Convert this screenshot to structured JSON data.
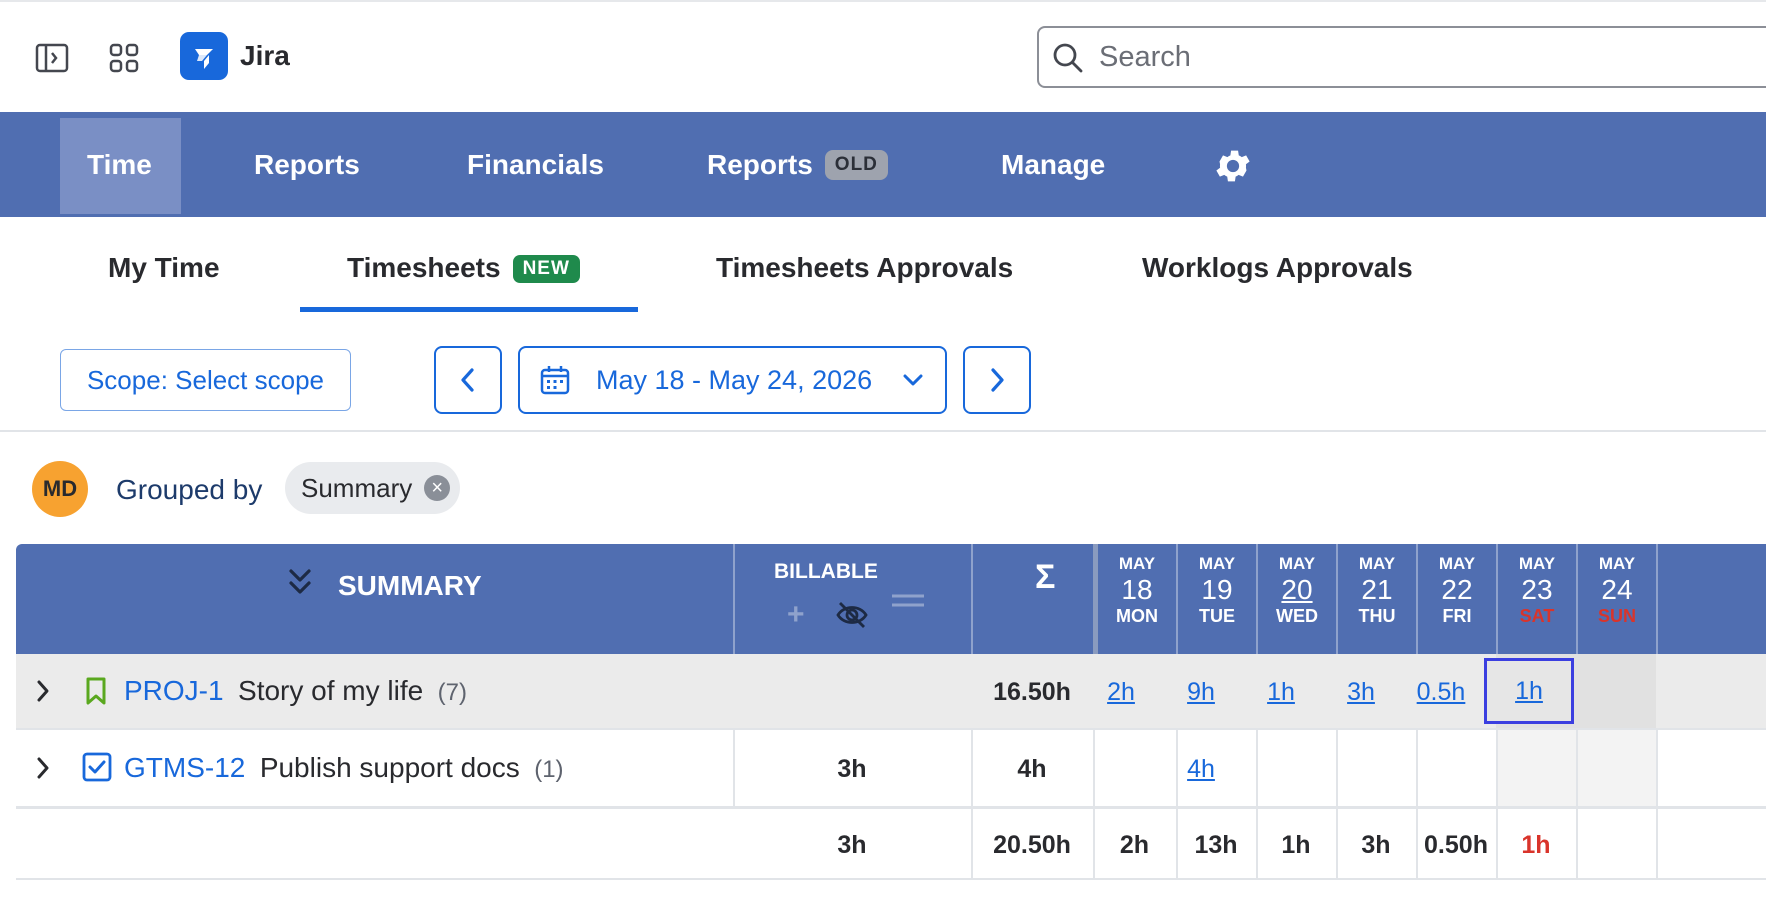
{
  "topbar": {
    "sidebar_toggle_icon": "sidebar-toggle-icon",
    "app_switcher_icon": "app-grid-icon",
    "app_name": "Jira",
    "search_placeholder": "Search"
  },
  "nav": {
    "items": [
      {
        "label": "Time",
        "active": true
      },
      {
        "label": "Reports"
      },
      {
        "label": "Financials"
      },
      {
        "label": "Reports",
        "badge": "OLD"
      },
      {
        "label": "Manage"
      }
    ],
    "settings_icon": "gear-icon",
    "colors": {
      "nav_bg": "#506eb1",
      "accent": "#1868db",
      "weekend_red": "#d9342b"
    }
  },
  "subtabs": [
    {
      "label": "My Time"
    },
    {
      "label": "Timesheets",
      "badge": "NEW",
      "active": true
    },
    {
      "label": "Timesheets Approvals"
    },
    {
      "label": "Worklogs Approvals"
    }
  ],
  "toolbar": {
    "scope_label": "Scope: Select scope",
    "date_range": "May 18 - May 24, 2026"
  },
  "grouping": {
    "avatar_initials": "MD",
    "grouped_by_label": "Grouped by",
    "chip_label": "Summary",
    "chip_remove": "×"
  },
  "table": {
    "header": {
      "summary": "SUMMARY",
      "billable": "BILLABLE",
      "sum_symbol": "Σ",
      "days": [
        {
          "month": "MAY",
          "day": "18",
          "weekday": "MON",
          "weekend": false
        },
        {
          "month": "MAY",
          "day": "19",
          "weekday": "TUE",
          "weekend": false
        },
        {
          "month": "MAY",
          "day": "20",
          "weekday": "WED",
          "weekend": false
        },
        {
          "month": "MAY",
          "day": "21",
          "weekday": "THU",
          "weekend": false
        },
        {
          "month": "MAY",
          "day": "22",
          "weekday": "FRI",
          "weekend": false
        },
        {
          "month": "MAY",
          "day": "23",
          "weekday": "SAT",
          "weekend": true
        },
        {
          "month": "MAY",
          "day": "24",
          "weekday": "SUN",
          "weekend": true
        }
      ]
    },
    "rows": [
      {
        "key": "PROJ-1",
        "summary": "Story of my life",
        "count": "(7)",
        "billable": "",
        "total": "16.50h",
        "days": [
          "2h",
          "9h",
          "1h",
          "3h",
          "0.5h",
          "1h",
          ""
        ]
      },
      {
        "key": "GTMS-12",
        "summary": "Publish support docs",
        "count": "(1)",
        "billable": "3h",
        "total": "4h",
        "days": [
          "",
          "4h",
          "",
          "",
          "",
          "",
          ""
        ]
      }
    ],
    "totals": {
      "billable": "3h",
      "total": "20.50h",
      "days": [
        "2h",
        "13h",
        "1h",
        "3h",
        "0.50h",
        "1h",
        ""
      ]
    }
  }
}
